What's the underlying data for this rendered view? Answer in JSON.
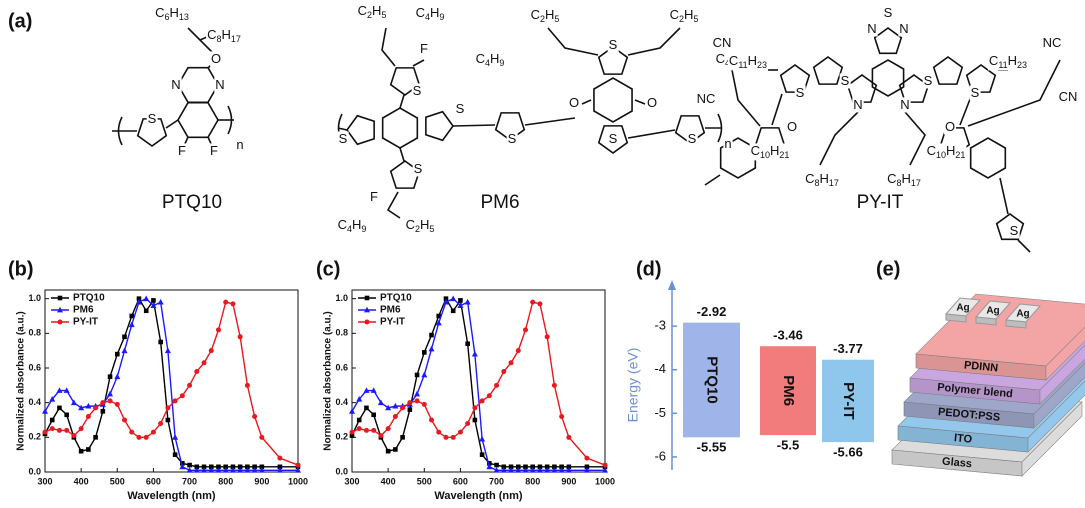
{
  "panel_labels": [
    "(a)",
    "(b)",
    "(c)",
    "(d)",
    "(e)"
  ],
  "molecules": [
    {
      "name": "PTQ10",
      "atoms": [
        "C6H13",
        "C8H17",
        "O",
        "N",
        "N",
        "S",
        "F",
        "F",
        "n"
      ]
    },
    {
      "name": "PM6",
      "atoms": [
        "C2H5",
        "C4H9",
        "F",
        "S",
        "S",
        "S",
        "O",
        "O",
        "S",
        "C2H5",
        "C4H9",
        "C2H5",
        "C4H9",
        "S",
        "S",
        "F",
        "S",
        "C4H9",
        "C2H5",
        "n",
        "S"
      ]
    },
    {
      "name": "PY-IT",
      "atoms": [
        "N",
        "S",
        "N",
        "C11H23",
        "C11H23",
        "S",
        "S",
        "S",
        "S",
        "N",
        "N",
        "C10H21",
        "C10H21",
        "C8H17",
        "C8H17",
        "CN",
        "NC",
        "NC",
        "CN",
        "O",
        "O",
        "S"
      ]
    }
  ],
  "chart_data": [
    {
      "type": "line",
      "x_label": "Wavelength (nm)",
      "y_label": "Normalized absorbance (a.u.)",
      "x": [
        300,
        320,
        340,
        360,
        380,
        400,
        420,
        440,
        460,
        480,
        500,
        520,
        540,
        560,
        580,
        600,
        620,
        640,
        660,
        680,
        700,
        720,
        740,
        760,
        780,
        800,
        820,
        840,
        860,
        880,
        900,
        950,
        1000
      ],
      "xlim": [
        300,
        1000
      ],
      "xticks": [
        300,
        400,
        500,
        600,
        700,
        800,
        900,
        1000
      ],
      "ylim": [
        0,
        1.05
      ],
      "yticks": [
        {
          "value": 0,
          "label": "0.0"
        },
        {
          "value": 0.2,
          "label": "0.2"
        },
        {
          "value": 0.4,
          "label": "0.4"
        },
        {
          "value": 0.6,
          "label": "0.6"
        },
        {
          "value": 0.8,
          "label": "0.8"
        },
        {
          "value": 1,
          "label": "1.0"
        }
      ],
      "series": [
        {
          "name": "PTQ10",
          "color": "#000000",
          "marker": "square",
          "values": [
            0.22,
            0.3,
            0.37,
            0.33,
            0.2,
            0.12,
            0.13,
            0.2,
            0.35,
            0.55,
            0.68,
            0.78,
            0.9,
            1.0,
            0.93,
            0.99,
            0.75,
            0.3,
            0.1,
            0.05,
            0.04,
            0.03,
            0.03,
            0.03,
            0.03,
            0.03,
            0.03,
            0.03,
            0.03,
            0.03,
            0.03,
            0.03,
            0.03
          ]
        },
        {
          "name": "PM6",
          "color": "#1a1aff",
          "marker": "triangle",
          "values": [
            0.35,
            0.42,
            0.47,
            0.47,
            0.4,
            0.37,
            0.38,
            0.38,
            0.39,
            0.45,
            0.55,
            0.7,
            0.85,
            0.98,
            1.0,
            0.96,
            0.98,
            0.7,
            0.2,
            0.03,
            0.01,
            0.01,
            0.01,
            0.01,
            0.01,
            0.01,
            0.01,
            0.01,
            0.01,
            0.01,
            0.01,
            0.01,
            0.01
          ]
        },
        {
          "name": "PY-IT",
          "color": "#e8191f",
          "marker": "circle",
          "values": [
            0.23,
            0.25,
            0.24,
            0.24,
            0.21,
            0.25,
            0.32,
            0.37,
            0.4,
            0.41,
            0.39,
            0.3,
            0.23,
            0.2,
            0.2,
            0.23,
            0.28,
            0.37,
            0.41,
            0.44,
            0.5,
            0.58,
            0.63,
            0.7,
            0.82,
            0.98,
            0.97,
            0.78,
            0.5,
            0.32,
            0.2,
            0.08,
            0.04
          ]
        }
      ]
    },
    {
      "type": "line",
      "x_label": "Wavelength (nm)",
      "y_label": "Normalized absorbance (a.u.)",
      "x": [
        300,
        320,
        340,
        360,
        380,
        400,
        420,
        440,
        460,
        480,
        500,
        520,
        540,
        560,
        580,
        600,
        620,
        640,
        660,
        680,
        700,
        720,
        740,
        760,
        780,
        800,
        820,
        840,
        860,
        880,
        900,
        950,
        1000
      ],
      "xlim": [
        300,
        1000
      ],
      "xticks": [
        300,
        400,
        500,
        600,
        700,
        800,
        900,
        1000
      ],
      "ylim": [
        0,
        1.05
      ],
      "yticks": [
        {
          "value": 0,
          "label": "0.0"
        },
        {
          "value": 0.2,
          "label": "0.2"
        },
        {
          "value": 0.4,
          "label": "0.4"
        },
        {
          "value": 0.6,
          "label": "0.6"
        },
        {
          "value": 0.8,
          "label": "0.8"
        },
        {
          "value": 1,
          "label": "1.0"
        }
      ],
      "series": [
        {
          "name": "PTQ10",
          "color": "#000000",
          "marker": "square",
          "values": [
            0.21,
            0.3,
            0.37,
            0.33,
            0.2,
            0.12,
            0.13,
            0.2,
            0.36,
            0.56,
            0.69,
            0.79,
            0.9,
            1.0,
            0.93,
            0.99,
            0.74,
            0.3,
            0.1,
            0.05,
            0.04,
            0.03,
            0.03,
            0.03,
            0.03,
            0.03,
            0.03,
            0.03,
            0.03,
            0.03,
            0.03,
            0.03,
            0.03
          ]
        },
        {
          "name": "PM6",
          "color": "#1a1aff",
          "marker": "triangle",
          "values": [
            0.35,
            0.42,
            0.47,
            0.47,
            0.4,
            0.37,
            0.38,
            0.38,
            0.39,
            0.45,
            0.56,
            0.71,
            0.86,
            0.98,
            1.0,
            0.96,
            0.98,
            0.68,
            0.19,
            0.03,
            0.01,
            0.01,
            0.01,
            0.01,
            0.01,
            0.01,
            0.01,
            0.01,
            0.01,
            0.01,
            0.01,
            0.01,
            0.01
          ]
        },
        {
          "name": "PY-IT",
          "color": "#e8191f",
          "marker": "circle",
          "values": [
            0.23,
            0.25,
            0.24,
            0.24,
            0.21,
            0.25,
            0.32,
            0.37,
            0.4,
            0.41,
            0.39,
            0.3,
            0.23,
            0.2,
            0.2,
            0.23,
            0.28,
            0.37,
            0.41,
            0.44,
            0.5,
            0.58,
            0.63,
            0.7,
            0.82,
            0.98,
            0.97,
            0.78,
            0.5,
            0.32,
            0.2,
            0.08,
            0.04
          ]
        }
      ]
    },
    {
      "type": "range",
      "y_label": "Energy (eV)",
      "categories": [
        "PTQ10",
        "PM6",
        "PY-IT"
      ],
      "high": [
        -2.92,
        -3.46,
        -3.77
      ],
      "low": [
        -5.55,
        -5.5,
        -5.66
      ],
      "colors": [
        "#9fb4e8",
        "#f27b7b",
        "#8fc6ec"
      ],
      "ylim": [
        -6.3,
        -2.4
      ],
      "yticks": [
        -6,
        -5,
        -4,
        -3
      ]
    }
  ],
  "device": {
    "layers": [
      "Glass",
      "ITO",
      "PEDOT:PSS",
      "Polymer blend",
      "PDINN"
    ],
    "electrodes": [
      "Ag",
      "Ag",
      "Ag"
    ]
  }
}
